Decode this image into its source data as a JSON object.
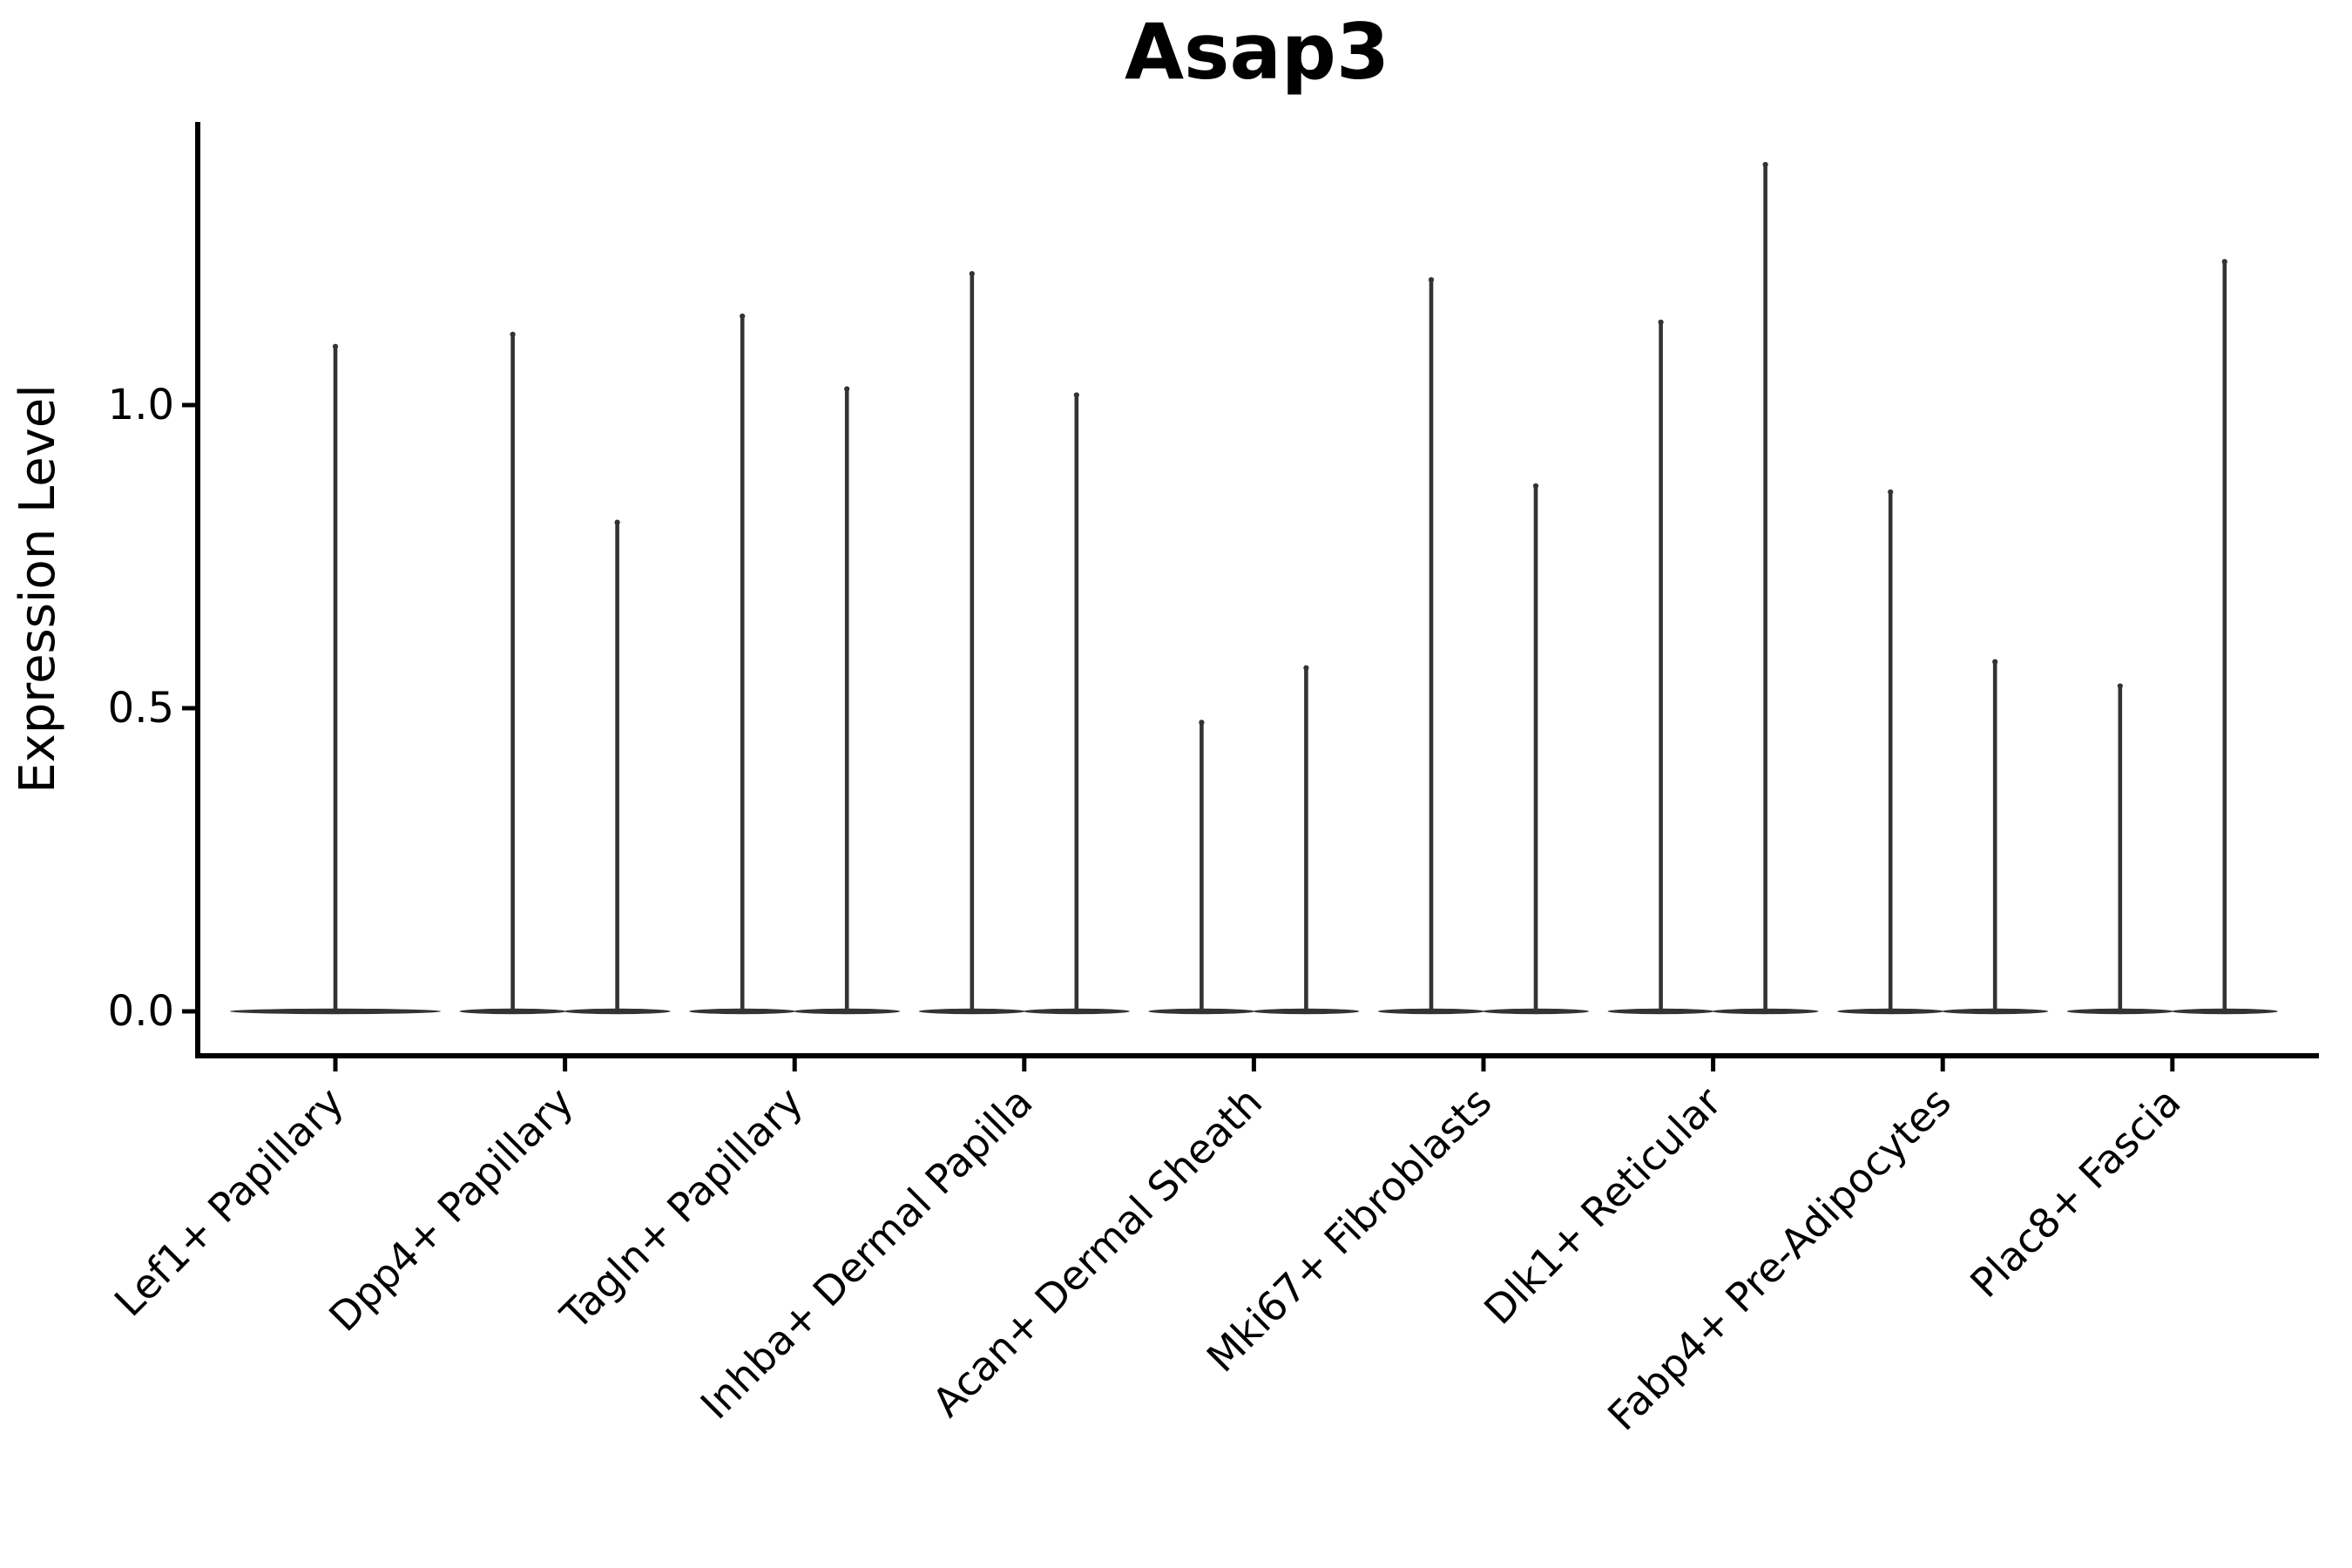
{
  "title": "Asap3",
  "chart_data": {
    "type": "violin",
    "title": "Asap3",
    "xlabel": "",
    "ylabel": "Expression Level",
    "ytick_labels": [
      "0.0",
      "0.5",
      "1.0"
    ],
    "ytick_values": [
      0.0,
      0.5,
      1.0
    ],
    "ylim": [
      -0.07,
      1.47
    ],
    "grid": false,
    "legend": "none",
    "background": "#ffffff",
    "axis_color": "#000000",
    "violin_color": "#333333",
    "categories": [
      "Lef1+ Papillary",
      "Dpp4+ Papillary",
      "Tagln+ Papillary",
      "Inhba+ Dermal Papilla",
      "Acan+ Dermal Sheath",
      "Mki67+ Fibroblasts",
      "Dlk1+ Reticular",
      "Fabp4+ Pre-Adipocytes",
      "Plac8+ Fascia"
    ],
    "violins": [
      {
        "category": "Lef1+ Papillary",
        "maxima": [
          1.1
        ]
      },
      {
        "category": "Dpp4+ Papillary",
        "maxima": [
          1.12,
          0.81
        ]
      },
      {
        "category": "Tagln+ Papillary",
        "maxima": [
          1.15,
          1.03
        ]
      },
      {
        "category": "Inhba+ Dermal Papilla",
        "maxima": [
          1.22,
          1.02
        ]
      },
      {
        "category": "Acan+ Dermal Sheath",
        "maxima": [
          0.48,
          0.57
        ]
      },
      {
        "category": "Mki67+ Fibroblasts",
        "maxima": [
          1.21,
          0.87
        ]
      },
      {
        "category": "Dlk1+ Reticular",
        "maxima": [
          1.14,
          1.4
        ]
      },
      {
        "category": "Fabp4+ Pre-Adipocytes",
        "maxima": [
          0.86,
          0.58
        ]
      },
      {
        "category": "Plac8+ Fascia",
        "maxima": [
          0.54,
          1.24
        ]
      }
    ],
    "description": "Violin plot of Asap3 expression; most cells at 0 giving wide flat bases with thin spikes to the per-group maximum. First category has a single centered violin; all others have two dodged violins."
  }
}
